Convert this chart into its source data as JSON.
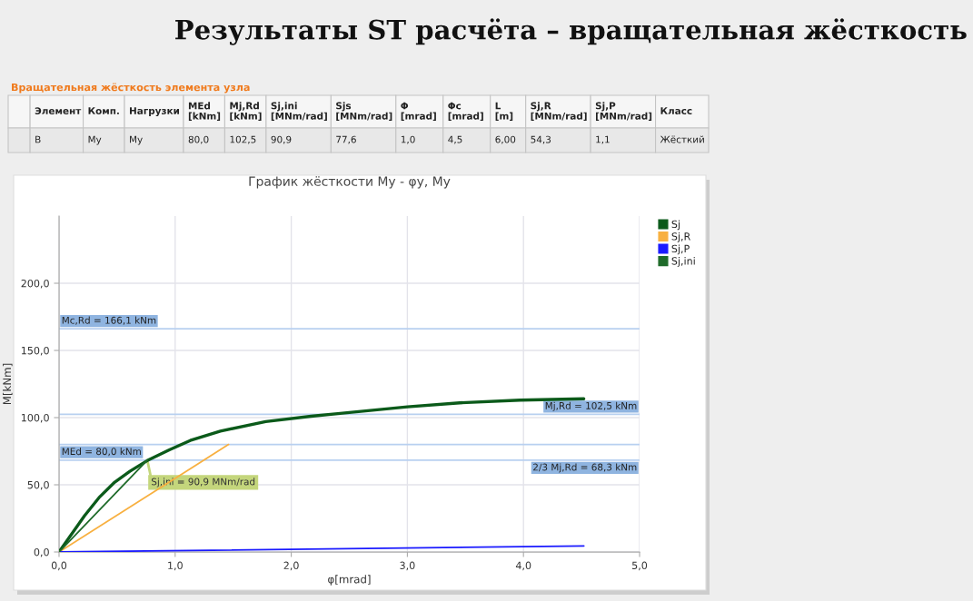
{
  "chart_data": [
    {
      "type": "other",
      "title": "Результаты ST расчёта – вращательная жёсткость",
      "subtitle": "Вращательная жёсткость элемента узла",
      "categories": [
        null,
        "Элемент",
        "Комп.",
        "Нагрузки",
        "MEd\n[kNm]",
        "Mj,Rd\n[kNm]",
        "Sj,ini\n[MNm/rad]",
        "Sjs\n[MNm/rad]",
        "Φ\n[mrad]",
        "Φc\n[mrad]",
        "L\n[m]",
        "Sj,R\n[MNm/rad]",
        "Sj,P\n[MNm/rad]",
        "Класс"
      ],
      "cell_labels": [
        [
          null,
          "B",
          "My",
          "My",
          "80,0",
          "102,5",
          "90,9",
          "77,6",
          "1,0",
          "4,5",
          "6,00",
          "54,3",
          "1,1",
          "Жёсткий"
        ]
      ]
    },
    {
      "type": "line",
      "title": "График жёсткости My - φy, My",
      "xlabel": "φ[mrad]",
      "ylabel": "M[kNm]",
      "xlim": [
        0,
        5
      ],
      "ylim": [
        0,
        250
      ],
      "xticks": [
        {
          "value": 0,
          "label": "0,0"
        },
        {
          "value": 1,
          "label": "1,0"
        },
        {
          "value": 2,
          "label": "2,0"
        },
        {
          "value": 3,
          "label": "3,0"
        },
        {
          "value": 4,
          "label": "4,0"
        },
        {
          "value": 5,
          "label": "5,0"
        }
      ],
      "yticks": [
        {
          "value": 0,
          "label": "0,0"
        },
        {
          "value": 50,
          "label": "50,0"
        },
        {
          "value": 100,
          "label": "100,0"
        },
        {
          "value": 150,
          "label": "150,0"
        },
        {
          "value": 200,
          "label": "200,0"
        }
      ],
      "grid": true,
      "legend": "top right",
      "series": [
        {
          "name": "Sj",
          "color": "#0b5a1a",
          "x": [
            0,
            0.22,
            0.35,
            0.48,
            0.61,
            0.76,
            0.95,
            1.13,
            1.39,
            1.78,
            2.17,
            2.4,
            3.0,
            3.45,
            3.97,
            4.52
          ],
          "values": [
            0,
            27,
            41,
            52,
            60,
            68,
            76,
            83,
            90,
            97,
            101,
            103,
            108,
            111,
            113,
            114
          ]
        },
        {
          "name": "Sj,R",
          "color": "#f8b040",
          "x": [
            0,
            1.46
          ],
          "values": [
            0,
            80
          ]
        },
        {
          "name": "Sj,P",
          "color": "#1a1aff",
          "x": [
            0,
            4.52
          ],
          "values": [
            0,
            4.5
          ]
        },
        {
          "name": "Sj,ini",
          "color": "#1f6b2a",
          "x": [
            0,
            0.76
          ],
          "values": [
            0,
            68.3
          ]
        }
      ],
      "ref_lines": [
        {
          "axis": "y",
          "value": 166.1,
          "label": "Mc,Rd = 166,1 kNm",
          "color": "#b8d0f0"
        },
        {
          "axis": "y",
          "value": 102.5,
          "label": "Mj,Rd = 102,5 kNm",
          "color": "#b8d0f0"
        },
        {
          "axis": "y",
          "value": 80.0,
          "label": "MEd = 80,0 kNm",
          "color": "#b8d0f0"
        },
        {
          "axis": "y",
          "value": 68.3,
          "label": "2/3 Mj,Rd = 68,3 kNm",
          "color": "#b8d0f0"
        }
      ],
      "annotations": [
        {
          "text": "Sj,ini = 90,9 MNm/rad",
          "x": 0.76,
          "y": 68.3
        }
      ]
    }
  ]
}
